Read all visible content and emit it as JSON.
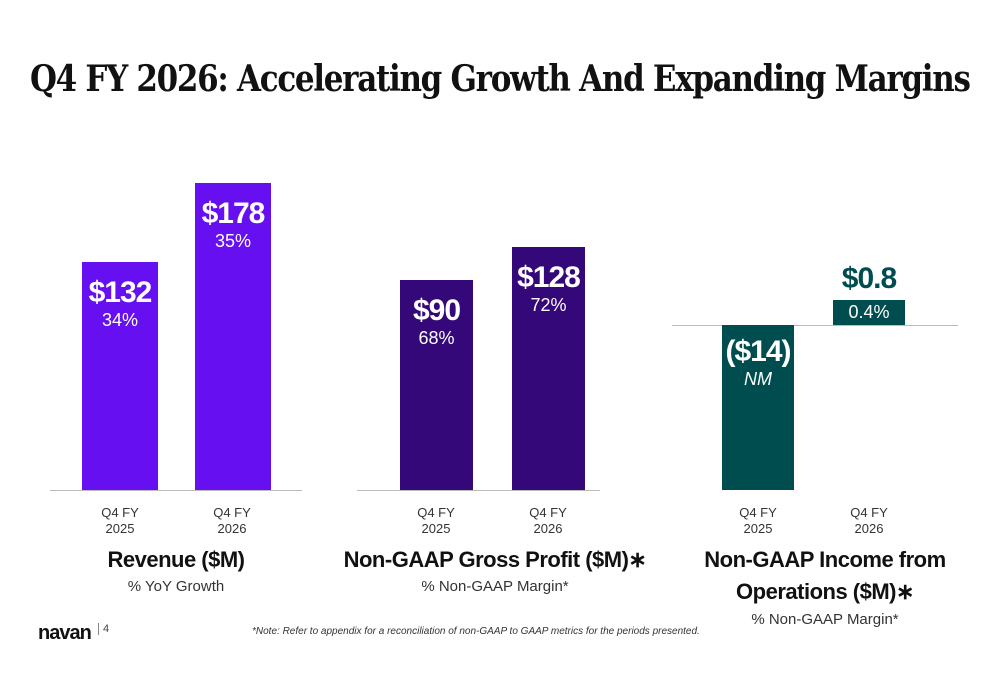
{
  "title": "Q4 FY 2026: Accelerating Growth And Expanding Margins",
  "footer": {
    "logo": "navan",
    "page_number": "4",
    "note": "*Note: Refer to appendix for a reconciliation of non-GAAP to GAAP metrics for the periods presented."
  },
  "chart_data": [
    {
      "type": "bar",
      "title": "Revenue ($M)",
      "subtitle": "% YoY Growth",
      "color": "#6610F2",
      "categories": [
        "Q4 FY 2025",
        "Q4 FY 2026"
      ],
      "category_lines": [
        [
          "Q4 FY",
          "2025"
        ],
        [
          "Q4 FY",
          "2026"
        ]
      ],
      "values": [
        132,
        178
      ],
      "value_labels": [
        "$132",
        "$178"
      ],
      "pct_labels": [
        "34%",
        "35%"
      ]
    },
    {
      "type": "bar",
      "title": "Non-GAAP Gross Profit ($M)∗",
      "subtitle": "% Non-GAAP Margin*",
      "color": "#35087A",
      "categories": [
        "Q4 FY 2025",
        "Q4 FY 2026"
      ],
      "category_lines": [
        [
          "Q4 FY",
          "2025"
        ],
        [
          "Q4 FY",
          "2026"
        ]
      ],
      "values": [
        90,
        128
      ],
      "value_labels": [
        "$90",
        "$128"
      ],
      "pct_labels": [
        "68%",
        "72%"
      ]
    },
    {
      "type": "bar",
      "title": "Non-GAAP Income from Operations ($M)∗",
      "title_lines": [
        "Non-GAAP Income from",
        "Operations ($M)∗"
      ],
      "subtitle": "% Non-GAAP Margin*",
      "color": "#004D4F",
      "categories": [
        "Q4 FY 2025",
        "Q4 FY 2026"
      ],
      "category_lines": [
        [
          "Q4 FY",
          "2025"
        ],
        [
          "Q4 FY",
          "2026"
        ]
      ],
      "values": [
        -14,
        0.8
      ],
      "value_labels": [
        "($14)",
        "$0.8"
      ],
      "pct_labels": [
        "NM",
        "0.4%"
      ]
    }
  ]
}
